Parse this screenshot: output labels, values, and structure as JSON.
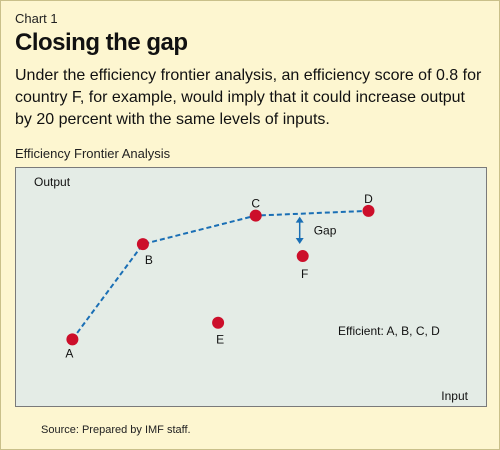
{
  "header": {
    "chart_number": "Chart 1",
    "title": "Closing the gap",
    "subtitle": "Under the efficiency frontier analysis, an efficiency score of 0.8 for country F, for example, would imply that it could increase output by 20 percent with the same levels of inputs."
  },
  "panel_title": "Efficiency Frontier Analysis",
  "source": "Source: Prepared by IMF staff.",
  "colors": {
    "background": "#fdf6d0",
    "plot_background": "#e4ece6",
    "point": "#cc0e2a",
    "frontier": "#1a6fb5"
  },
  "chart_data": {
    "type": "scatter",
    "title": "Efficiency Frontier Analysis",
    "xlabel": "Input",
    "ylabel": "Output",
    "grid": false,
    "xlim": [
      0,
      10
    ],
    "ylim": [
      0,
      10
    ],
    "points": [
      {
        "label": "A",
        "x": 1.2,
        "y": 2.8
      },
      {
        "label": "B",
        "x": 2.7,
        "y": 6.8
      },
      {
        "label": "C",
        "x": 5.1,
        "y": 8.0
      },
      {
        "label": "D",
        "x": 7.5,
        "y": 8.2
      },
      {
        "label": "E",
        "x": 4.3,
        "y": 3.5
      },
      {
        "label": "F",
        "x": 6.1,
        "y": 6.3
      }
    ],
    "frontier": [
      "A",
      "B",
      "C",
      "D"
    ],
    "gap": {
      "point": "F",
      "label": "Gap"
    },
    "annotation": "Efficient: A, B, C, D"
  }
}
